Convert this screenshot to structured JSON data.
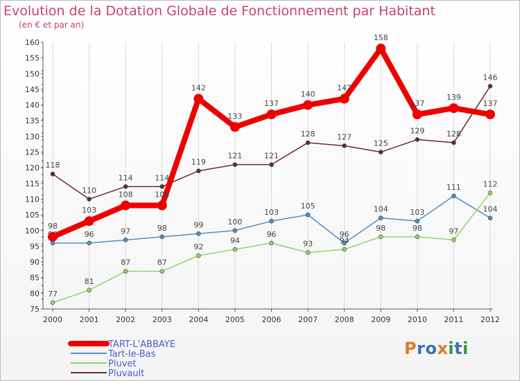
{
  "title": "Evolution de la Dotation Globale de Fonctionnement par Habitant",
  "subtitle": "(en € et par an)",
  "logo": {
    "text": "Proxiti",
    "colors": [
      "#e07a1f",
      "#3a6fc0",
      "#3a6fc0",
      "#e07a1f",
      "#2f9a3a",
      "#3a6fc0",
      "#2f9a3a"
    ]
  },
  "colors": {
    "title": "#c8416b",
    "grid": "#d9d9d9",
    "axis": "#555555",
    "tick_text": "#333333",
    "legend_text": "#4b5dc4",
    "axis_accent": "#e02020"
  },
  "chart_data": {
    "type": "line",
    "title": "Evolution de la Dotation Globale de Fonctionnement par Habitant",
    "subtitle": "(en € et par an)",
    "x": [
      "2000",
      "2001",
      "2002",
      "2003",
      "2004",
      "2005",
      "2006",
      "2007",
      "2008",
      "2009",
      "2010",
      "2011",
      "2012"
    ],
    "ylim": [
      75,
      160
    ],
    "yticks": [
      75,
      80,
      85,
      90,
      95,
      100,
      105,
      110,
      115,
      120,
      125,
      130,
      135,
      140,
      145,
      150,
      155,
      160
    ],
    "grid": "vertical",
    "legend_position": "bottom-left",
    "series": [
      {
        "name": "TART-L'ABBAYE",
        "values": [
          98,
          103,
          108,
          108,
          142,
          133,
          137,
          140,
          142,
          158,
          137,
          139,
          137
        ],
        "color": "#ee0000",
        "emphasis": true
      },
      {
        "name": "Tart-le-Bas",
        "values": [
          96,
          96,
          97,
          98,
          99,
          100,
          103,
          105,
          96,
          104,
          103,
          111,
          104
        ],
        "color": "#4a90c8",
        "emphasis": false
      },
      {
        "name": "Pluvet",
        "values": [
          77,
          81,
          87,
          87,
          92,
          94,
          96,
          93,
          94,
          98,
          98,
          97,
          112
        ],
        "color": "#8ed465",
        "emphasis": false
      },
      {
        "name": "Pluvault",
        "values": [
          118,
          110,
          114,
          114,
          119,
          121,
          121,
          128,
          127,
          125,
          129,
          128,
          146
        ],
        "color": "#6b2a2a",
        "emphasis": false
      }
    ]
  }
}
